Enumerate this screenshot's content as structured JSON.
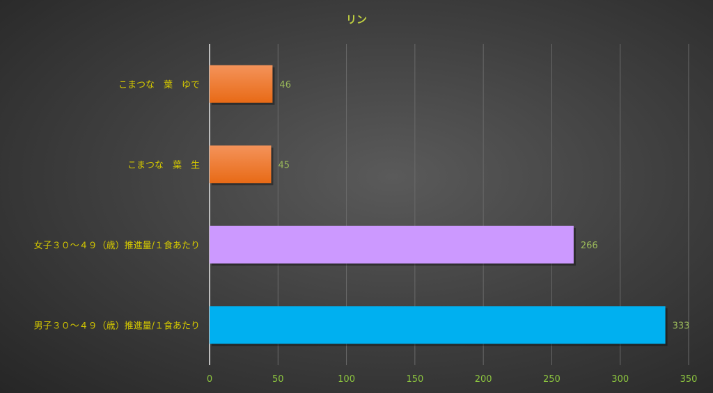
{
  "chart_data": {
    "type": "bar",
    "orientation": "horizontal",
    "title": "リン",
    "categories": [
      "こまつな　葉　ゆで",
      "こまつな　葉　生",
      "女子３０～４９（歳）推進量/１食あたり",
      "男子３０～４９（歳）推進量/１食あたり"
    ],
    "values": [
      46,
      45,
      266,
      333
    ],
    "colors": [
      "#f07a2a",
      "#f07a2a",
      "#cc99ff",
      "#00b0f0"
    ],
    "xlim": [
      0,
      350
    ],
    "xticks": [
      0,
      50,
      100,
      150,
      200,
      250,
      300,
      350
    ],
    "grid": true,
    "data_labels": true,
    "title_color": "#c0d040",
    "category_label_color": "#d4c800",
    "tick_label_color": "#8dc63f",
    "data_label_color": "#9ab95a"
  }
}
